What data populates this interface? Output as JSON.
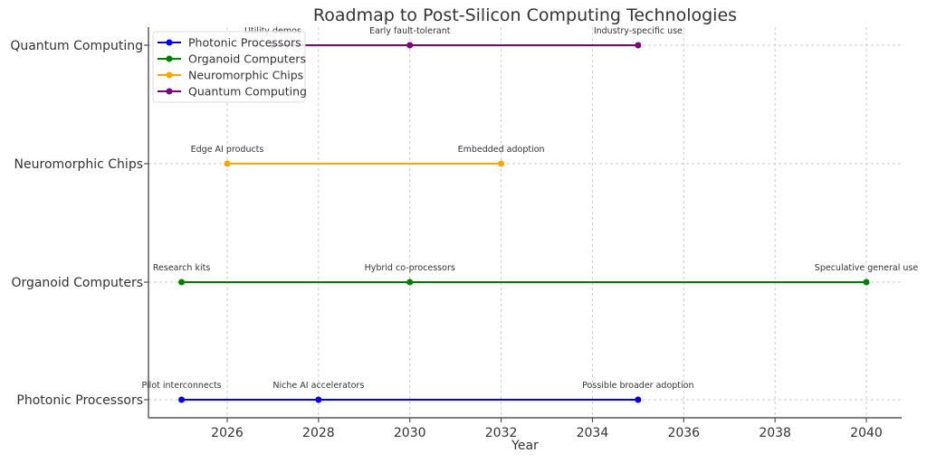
{
  "chart_data": {
    "type": "line",
    "title": "Roadmap to Post-Silicon Computing Technologies",
    "xlabel": "Year",
    "ylabel": "",
    "xlim": [
      2024.3,
      2040.8
    ],
    "xticks": [
      "2026",
      "2028",
      "2030",
      "2032",
      "2034",
      "2036",
      "2038",
      "2040"
    ],
    "categories": [
      "Photonic Processors",
      "Organoid Computers",
      "Neuromorphic Chips",
      "Quantum Computing"
    ],
    "grid": true,
    "legend": "top-left",
    "series": [
      {
        "name": "Photonic Processors",
        "color": "#0000ee",
        "points": [
          {
            "x": 2025,
            "label": "Pilot interconnects"
          },
          {
            "x": 2028,
            "label": "Niche AI accelerators"
          },
          {
            "x": 2035,
            "label": "Possible broader adoption"
          }
        ]
      },
      {
        "name": "Organoid Computers",
        "color": "#008000",
        "points": [
          {
            "x": 2025,
            "label": "Research kits"
          },
          {
            "x": 2030,
            "label": "Hybrid co-processors"
          },
          {
            "x": 2040,
            "label": "Speculative general use"
          }
        ]
      },
      {
        "name": "Neuromorphic Chips",
        "color": "#ffa500",
        "points": [
          {
            "x": 2026,
            "label": "Edge AI products"
          },
          {
            "x": 2032,
            "label": "Embedded adoption"
          }
        ]
      },
      {
        "name": "Quantum Computing",
        "color": "#800080",
        "points": [
          {
            "x": 2027,
            "label": "Utility demos"
          },
          {
            "x": 2030,
            "label": "Early fault-tolerant"
          },
          {
            "x": 2035,
            "label": "Industry-specific use"
          }
        ]
      }
    ]
  }
}
